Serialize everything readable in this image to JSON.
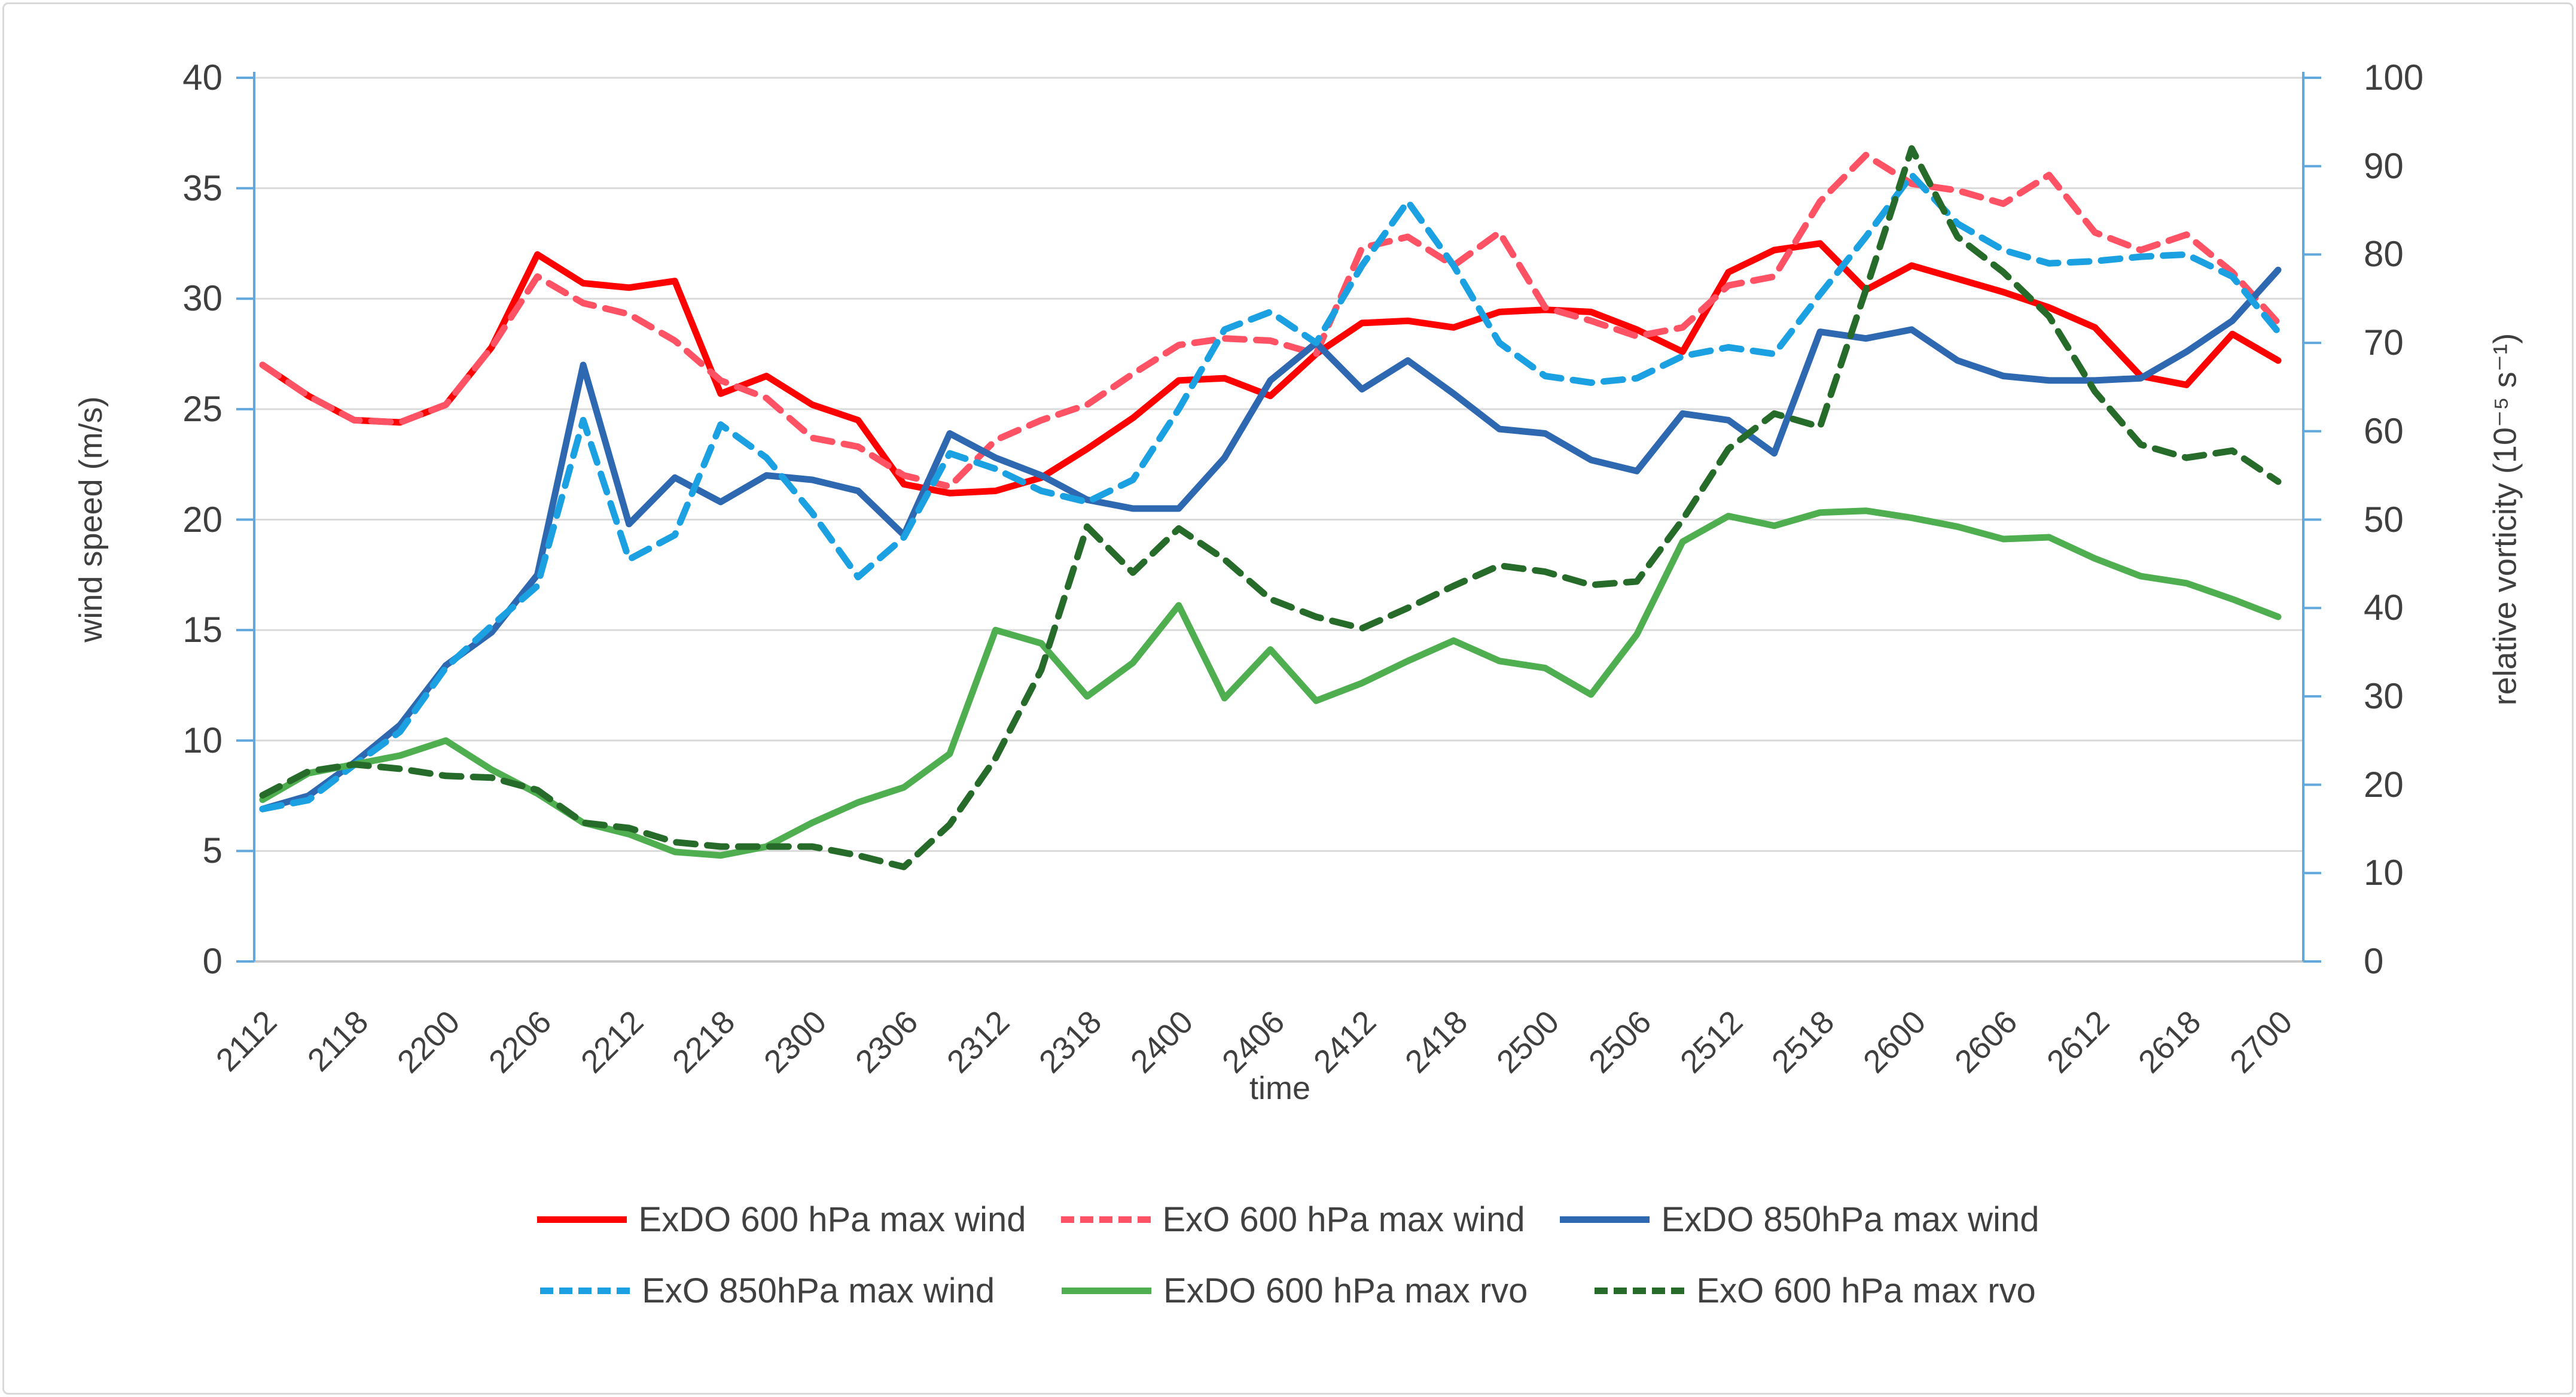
{
  "styles": {
    "grid_color": "#DADADA",
    "value_axis_color": "#62A8DC",
    "category_axis_color": "#C9C9C9",
    "text_color": "#3F3F3F",
    "background": "#FFFFFF",
    "frame_border": "#D9D9D9"
  },
  "chart_data": {
    "type": "line",
    "grid": "horizontal",
    "legend_position": "bottom",
    "xlabel": "time",
    "y_left": {
      "title": "wind speed (m/s)",
      "min": 0,
      "max": 40,
      "tick_step": 5,
      "tick_labels": [
        "40",
        "35",
        "30",
        "25",
        "20",
        "15",
        "10",
        "5",
        "0"
      ]
    },
    "y_right": {
      "title": "relative vorticity (10⁻⁵ s⁻¹)",
      "min": 0,
      "max": 100,
      "tick_step": 10,
      "tick_labels": [
        "100",
        "90",
        "80",
        "70",
        "60",
        "50",
        "40",
        "30",
        "20",
        "10",
        "0"
      ]
    },
    "x_tick_labels": [
      "2112",
      "2118",
      "2200",
      "2206",
      "2212",
      "2218",
      "2300",
      "2306",
      "2312",
      "2318",
      "2400",
      "2406",
      "2412",
      "2418",
      "2500",
      "2506",
      "2512",
      "2518",
      "2600",
      "2606",
      "2612",
      "2618",
      "2700"
    ],
    "x": [
      "2112",
      "2115",
      "2118",
      "2121",
      "2200",
      "2203",
      "2206",
      "2209",
      "2212",
      "2215",
      "2218",
      "2221",
      "2300",
      "2303",
      "2306",
      "2309",
      "2312",
      "2315",
      "2318",
      "2321",
      "2400",
      "2403",
      "2406",
      "2409",
      "2412",
      "2415",
      "2418",
      "2421",
      "2500",
      "2503",
      "2506",
      "2509",
      "2512",
      "2515",
      "2518",
      "2521",
      "2600",
      "2603",
      "2606",
      "2609",
      "2612",
      "2615",
      "2618",
      "2621",
      "2700"
    ],
    "series": [
      {
        "name": "ExDO 600 hPa max wind",
        "color": "#FF0000",
        "dash": false,
        "axis": "left",
        "values": [
          27.0,
          25.6,
          24.5,
          24.4,
          25.2,
          27.8,
          32.0,
          30.7,
          30.5,
          30.8,
          25.7,
          26.5,
          25.2,
          24.5,
          21.6,
          21.2,
          21.3,
          21.9,
          23.2,
          24.6,
          26.3,
          26.4,
          25.6,
          27.5,
          28.9,
          29.0,
          28.7,
          29.4,
          29.5,
          29.4,
          28.6,
          27.6,
          31.2,
          32.2,
          32.5,
          30.4,
          31.5,
          30.9,
          30.3,
          29.6,
          28.7,
          26.5,
          26.1,
          28.4,
          27.2
        ]
      },
      {
        "name": "ExO 600 hPa max wind",
        "color": "#FF5365",
        "dash": true,
        "axis": "left",
        "values": [
          27.0,
          25.6,
          24.5,
          24.4,
          25.2,
          27.8,
          31.0,
          29.8,
          29.3,
          28.1,
          26.3,
          25.5,
          23.7,
          23.3,
          22.0,
          21.5,
          23.6,
          24.5,
          25.2,
          26.6,
          27.9,
          28.2,
          28.1,
          27.5,
          32.3,
          32.8,
          31.5,
          33.0,
          29.6,
          29.0,
          28.3,
          28.7,
          30.6,
          31.0,
          34.4,
          36.5,
          35.2,
          34.9,
          34.3,
          35.6,
          33.0,
          32.2,
          32.9,
          31.2,
          28.9
        ]
      },
      {
        "name": "ExDO 850hPa max wind",
        "color": "#2E68B0",
        "dash": false,
        "axis": "left",
        "values": [
          6.9,
          7.5,
          9.0,
          10.7,
          13.4,
          14.9,
          17.5,
          27.0,
          19.8,
          21.9,
          20.8,
          22.0,
          21.8,
          21.3,
          19.3,
          23.9,
          22.8,
          22.0,
          20.9,
          20.5,
          20.5,
          22.8,
          26.3,
          28.0,
          25.9,
          27.2,
          25.7,
          24.1,
          23.9,
          22.7,
          22.2,
          24.8,
          24.5,
          23.0,
          28.5,
          28.2,
          28.6,
          27.2,
          26.5,
          26.3,
          26.3,
          26.4,
          27.6,
          29.0,
          31.3
        ]
      },
      {
        "name": "ExO 850hPa max wind",
        "color": "#1BA1E2",
        "dash": true,
        "axis": "left",
        "values": [
          6.9,
          7.3,
          8.9,
          10.4,
          13.3,
          15.2,
          17.0,
          24.5,
          18.2,
          19.3,
          24.3,
          22.8,
          20.3,
          17.4,
          19.2,
          23.0,
          22.3,
          21.3,
          20.8,
          21.8,
          25.0,
          28.6,
          29.4,
          28.0,
          31.5,
          34.4,
          31.5,
          28.0,
          26.5,
          26.2,
          26.4,
          27.4,
          27.8,
          27.5,
          30.2,
          32.8,
          35.6,
          33.4,
          32.2,
          31.6,
          31.7,
          31.9,
          32.0,
          31.0,
          28.5
        ]
      },
      {
        "name": "ExDO 600 hPa max rvo",
        "color": "#4FAE50",
        "dash": false,
        "axis": "right",
        "values": [
          18.3,
          21.3,
          22.3,
          23.3,
          25.0,
          21.7,
          19.0,
          15.7,
          14.4,
          12.4,
          12.0,
          13.0,
          15.7,
          18.0,
          19.7,
          23.5,
          37.5,
          36.0,
          30.0,
          33.8,
          40.3,
          29.8,
          35.3,
          29.5,
          31.5,
          34.0,
          36.3,
          34.0,
          33.2,
          30.2,
          37.0,
          47.5,
          50.4,
          49.3,
          50.8,
          51.0,
          50.2,
          49.2,
          47.8,
          48.0,
          45.6,
          43.6,
          42.8,
          41.0,
          39.0
        ]
      },
      {
        "name": "ExO 600 hPa max rvo",
        "color": "#266B29",
        "dash": true,
        "axis": "right",
        "values": [
          18.8,
          21.5,
          22.3,
          21.8,
          21.0,
          20.8,
          19.4,
          15.7,
          15.1,
          13.5,
          13.0,
          13.0,
          13.0,
          12.0,
          10.7,
          15.5,
          23.0,
          33.0,
          49.2,
          44.0,
          49.0,
          45.5,
          41.0,
          39.0,
          37.7,
          40.0,
          42.5,
          44.8,
          44.1,
          42.6,
          43.0,
          50.0,
          58.0,
          62.0,
          60.5,
          76.0,
          92.0,
          82.0,
          78.0,
          73.0,
          64.5,
          58.5,
          57.0,
          57.8,
          54.3
        ]
      }
    ]
  }
}
